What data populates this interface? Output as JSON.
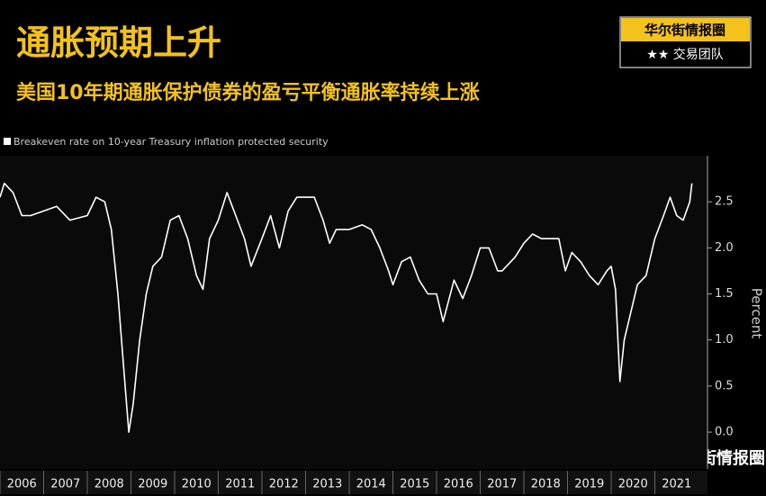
{
  "chart_data": {
    "type": "line",
    "title": "通胀预期上升",
    "subtitle": "美国10年期通胀保护债券的盈亏平衡通胀率持续上涨",
    "badge_top": "华尔街情报圈",
    "badge_bottom": "★★ 交易团队",
    "watermark": "华尔街情报圈",
    "y_label": "Percent",
    "x": [
      2006.0,
      2006.1,
      2006.3,
      2006.5,
      2006.7,
      2007.0,
      2007.3,
      2007.6,
      2008.0,
      2008.2,
      2008.4,
      2008.55,
      2008.7,
      2008.85,
      2008.95,
      2009.05,
      2009.2,
      2009.35,
      2009.5,
      2009.7,
      2009.9,
      2010.1,
      2010.3,
      2010.5,
      2010.65,
      2010.8,
      2011.0,
      2011.2,
      2011.4,
      2011.6,
      2011.75,
      2012.0,
      2012.2,
      2012.4,
      2012.6,
      2012.8,
      2013.0,
      2013.2,
      2013.4,
      2013.55,
      2013.7,
      2014.0,
      2014.3,
      2014.5,
      2014.7,
      2014.9,
      2015.0,
      2015.2,
      2015.4,
      2015.6,
      2015.8,
      2016.0,
      2016.15,
      2016.4,
      2016.6,
      2016.8,
      2017.0,
      2017.2,
      2017.4,
      2017.5,
      2017.8,
      2018.0,
      2018.2,
      2018.4,
      2018.6,
      2018.8,
      2018.95,
      2019.1,
      2019.3,
      2019.5,
      2019.7,
      2019.9,
      2020.0,
      2020.1,
      2020.2,
      2020.3,
      2020.45,
      2020.6,
      2020.8,
      2021.0,
      2021.2,
      2021.35,
      2021.5,
      2021.65,
      2021.8,
      2021.85
    ],
    "series": [
      {
        "name": "Breakeven rate on 10-year Treasury inflation protected security",
        "color": "#ffffff",
        "values": [
          2.55,
          2.7,
          2.6,
          2.35,
          2.35,
          2.4,
          2.45,
          2.3,
          2.35,
          2.55,
          2.5,
          2.2,
          1.5,
          0.6,
          0.0,
          0.3,
          1.0,
          1.5,
          1.8,
          1.9,
          2.3,
          2.35,
          2.1,
          1.7,
          1.55,
          2.1,
          2.3,
          2.6,
          2.35,
          2.1,
          1.8,
          2.1,
          2.35,
          2.0,
          2.4,
          2.55,
          2.55,
          2.55,
          2.3,
          2.05,
          2.2,
          2.2,
          2.25,
          2.2,
          2.0,
          1.75,
          1.6,
          1.85,
          1.9,
          1.65,
          1.5,
          1.5,
          1.2,
          1.65,
          1.45,
          1.7,
          2.0,
          2.0,
          1.75,
          1.75,
          1.9,
          2.05,
          2.15,
          2.1,
          2.1,
          2.1,
          1.75,
          1.95,
          1.85,
          1.7,
          1.6,
          1.75,
          1.8,
          1.55,
          0.55,
          1.0,
          1.3,
          1.6,
          1.7,
          2.1,
          2.35,
          2.55,
          2.35,
          2.3,
          2.5,
          2.7
        ]
      }
    ],
    "xlim": [
      2006,
      2022
    ],
    "xticks": [
      2006,
      2007,
      2008,
      2009,
      2010,
      2011,
      2012,
      2013,
      2014,
      2015,
      2016,
      2017,
      2018,
      2019,
      2020,
      2021
    ],
    "ylim": [
      -0.4,
      3.0
    ],
    "yticks": [
      {
        "value": 0,
        "label": "0.0"
      },
      {
        "value": 0.5,
        "label": "0.5"
      },
      {
        "value": 1,
        "label": "1.0"
      },
      {
        "value": 1.5,
        "label": "1.5"
      },
      {
        "value": 2,
        "label": "2.0"
      },
      {
        "value": 2.5,
        "label": "2.5"
      }
    ]
  }
}
